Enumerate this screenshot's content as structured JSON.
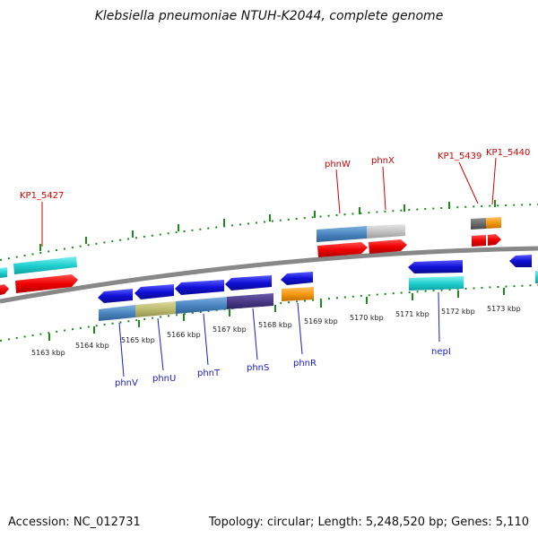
{
  "title": "Klebsiella pneumoniae NTUH-K2044, complete genome",
  "footer": {
    "accession": "Accession: NC_012731",
    "summary": "Topology: circular; Length: 5,248,520 bp; Genes: 5,110"
  },
  "kbp_labels": [
    "5163 kbp",
    "5164 kbp",
    "5165 kbp",
    "5166 kbp",
    "5167 kbp",
    "5168 kbp",
    "5169 kbp",
    "5170 kbp",
    "5171 kbp",
    "5172 kbp",
    "5173 kbp"
  ],
  "gene_labels_top": [
    "KP1_5427",
    "phnW",
    "phnX",
    "KP1_5439",
    "KP1_5440"
  ],
  "gene_labels_bottom": [
    "phnV",
    "phnU",
    "phnT",
    "phnS",
    "phnR",
    "nepI"
  ],
  "colors": {
    "forward_cds": "#ee0000",
    "reverse_cds": "#1010d8",
    "backbone": "#808080",
    "ticks": "#1a8a1a",
    "label_red": "#d40000",
    "label_blue": "#1a1acc"
  }
}
